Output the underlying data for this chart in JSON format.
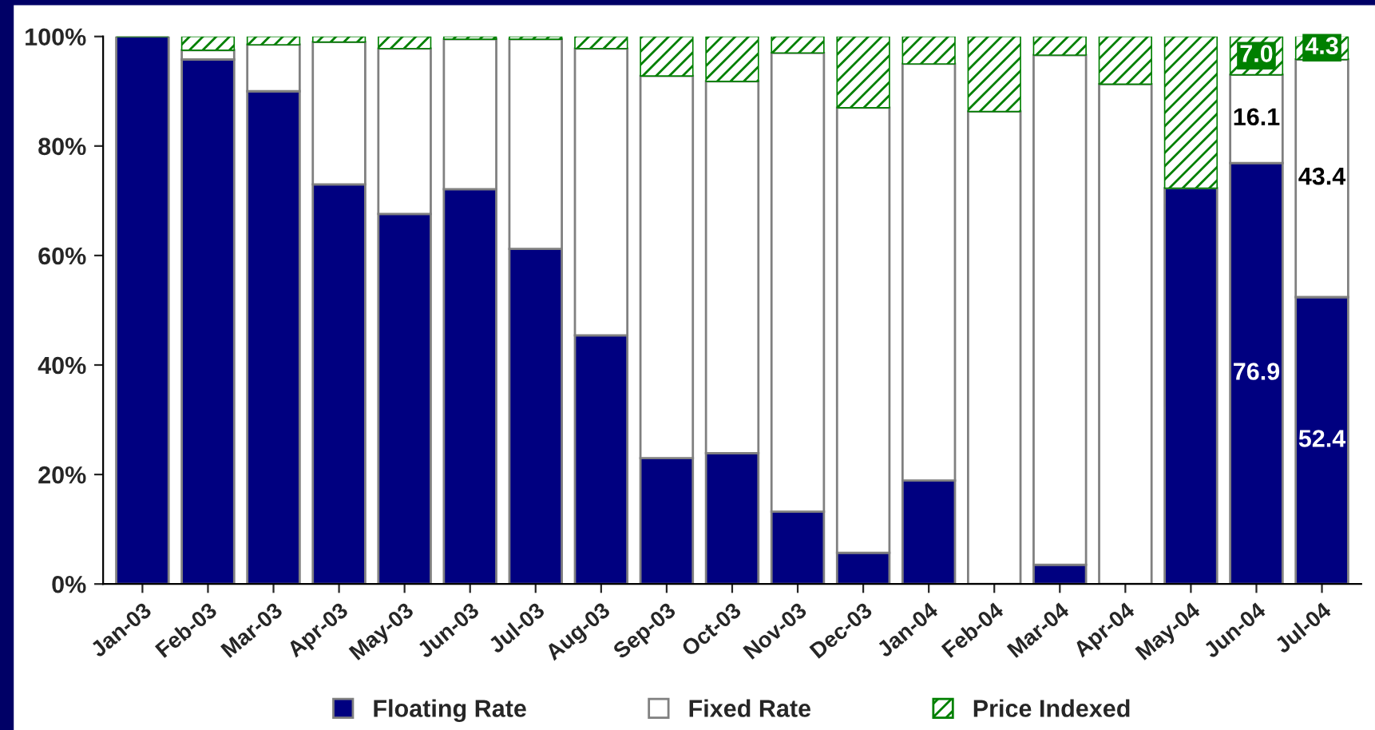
{
  "chart_data": {
    "type": "bar",
    "stacked": true,
    "categories": [
      "Jan-03",
      "Feb-03",
      "Mar-03",
      "Apr-03",
      "May-03",
      "Jun-03",
      "Jul-03",
      "Aug-03",
      "Sep-03",
      "Oct-03",
      "Nov-03",
      "Dec-03",
      "Jan-04",
      "Feb-04",
      "Mar-04",
      "Apr-04",
      "May-04",
      "Jun-04",
      "Jul-04"
    ],
    "series": [
      {
        "name": "Floating Rate",
        "color": "#000080",
        "values": [
          100,
          95.8,
          90,
          73,
          67.6,
          72.1,
          61.2,
          45.4,
          23,
          23.9,
          13.2,
          5.7,
          18.9,
          0,
          3.5,
          0,
          72.3,
          76.9,
          52.4
        ],
        "value_labels": [
          null,
          null,
          null,
          null,
          null,
          null,
          null,
          null,
          null,
          null,
          null,
          null,
          null,
          null,
          null,
          null,
          null,
          "76.9",
          "52.4"
        ]
      },
      {
        "name": "Fixed Rate",
        "color": "#ffffff",
        "values": [
          0,
          1.7,
          8.5,
          26,
          30.2,
          27.4,
          38.3,
          52.4,
          69.8,
          67.9,
          83.8,
          81.3,
          76.1,
          86.3,
          93.1,
          91.3,
          0,
          16.1,
          43.4
        ],
        "value_labels": [
          null,
          null,
          null,
          null,
          null,
          null,
          null,
          null,
          null,
          null,
          null,
          null,
          null,
          null,
          null,
          null,
          null,
          "16.1",
          "43.4"
        ]
      },
      {
        "name": "Price Indexed",
        "color": "#008000",
        "values": [
          0,
          2.5,
          1.5,
          1,
          2.2,
          0.5,
          0.5,
          2.2,
          7.2,
          8.2,
          3,
          13,
          5,
          13.7,
          3.4,
          8.7,
          27.7,
          7,
          4.3
        ],
        "value_labels": [
          null,
          null,
          null,
          null,
          null,
          null,
          null,
          null,
          null,
          null,
          null,
          null,
          null,
          null,
          null,
          null,
          null,
          "7.0",
          "4.3"
        ]
      }
    ],
    "ylim": [
      0,
      100
    ],
    "yticks": [
      {
        "value": 0,
        "label": "0%"
      },
      {
        "value": 20,
        "label": "20%"
      },
      {
        "value": 40,
        "label": "40%"
      },
      {
        "value": 60,
        "label": "60%"
      },
      {
        "value": 80,
        "label": "80%"
      },
      {
        "value": 100,
        "label": "100%"
      }
    ],
    "grid": false,
    "legend": "bottom"
  }
}
